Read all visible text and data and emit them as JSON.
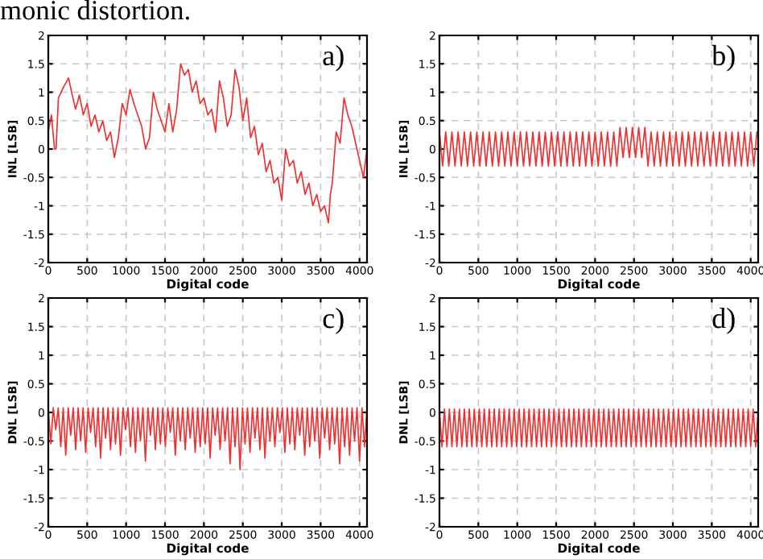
{
  "chart_data": [
    {
      "type": "line",
      "xlabel": "Digital code",
      "ylabel": "INL [LSB]",
      "annotations": [
        "a)",
        "monic distortion."
      ],
      "grid": true,
      "line_style": "solid",
      "marker": "none",
      "xlim": [
        0,
        4096
      ],
      "ylim": [
        -2,
        2
      ],
      "xticks": [
        0,
        500,
        1000,
        1500,
        2000,
        2500,
        3000,
        3500,
        4000
      ],
      "yticks": [
        -2,
        -1.5,
        -1,
        -0.5,
        0,
        0.5,
        1,
        1.5,
        2
      ],
      "x": [
        0,
        40,
        80,
        100,
        130,
        200,
        260,
        300,
        350,
        400,
        450,
        500,
        550,
        600,
        650,
        700,
        750,
        800,
        850,
        900,
        950,
        1000,
        1050,
        1100,
        1150,
        1200,
        1250,
        1300,
        1350,
        1400,
        1450,
        1500,
        1550,
        1600,
        1650,
        1700,
        1750,
        1800,
        1850,
        1900,
        1950,
        2000,
        2050,
        2100,
        2150,
        2200,
        2250,
        2300,
        2350,
        2400,
        2450,
        2500,
        2550,
        2600,
        2650,
        2700,
        2750,
        2800,
        2850,
        2900,
        2950,
        3000,
        3050,
        3100,
        3150,
        3200,
        3250,
        3300,
        3350,
        3400,
        3450,
        3500,
        3550,
        3600,
        3625,
        3650,
        3700,
        3750,
        3800,
        3850,
        3900,
        3950,
        4000,
        4050,
        4095
      ],
      "series": [
        {
          "color": "#f03030",
          "values": [
            0.3,
            0.6,
            0.0,
            0.0,
            0.9,
            1.1,
            1.25,
            1.0,
            0.7,
            0.95,
            0.6,
            0.8,
            0.4,
            0.6,
            0.3,
            0.5,
            0.15,
            0.3,
            -0.15,
            0.2,
            0.8,
            0.6,
            1.05,
            0.8,
            0.6,
            0.4,
            0.0,
            0.2,
            1.0,
            0.7,
            0.5,
            0.3,
            0.8,
            0.3,
            0.7,
            1.5,
            1.3,
            1.4,
            1.0,
            1.2,
            0.8,
            0.9,
            0.6,
            0.7,
            0.3,
            1.2,
            0.9,
            0.4,
            0.6,
            1.4,
            1.1,
            0.5,
            0.9,
            0.2,
            0.4,
            -0.1,
            0.1,
            -0.4,
            -0.2,
            -0.6,
            -0.5,
            -0.9,
            0.0,
            -0.3,
            -0.2,
            -0.6,
            -0.4,
            -0.8,
            -0.6,
            -1.0,
            -0.8,
            -1.1,
            -1.0,
            -1.3,
            -0.8,
            -0.6,
            0.3,
            0.1,
            0.9,
            0.6,
            0.4,
            0.1,
            -0.2,
            -0.5,
            0.0
          ]
        }
      ]
    },
    {
      "type": "line",
      "xlabel": "Digital code",
      "ylabel": "INL [LSB]",
      "annotations": [
        "b)"
      ],
      "grid": true,
      "line_style": "solid",
      "marker": "none",
      "xlim": [
        0,
        4096
      ],
      "ylim": [
        -2,
        2
      ],
      "xticks": [
        0,
        500,
        1000,
        1500,
        2000,
        2500,
        3000,
        3500,
        4000
      ],
      "yticks": [
        -2,
        -1.5,
        -1,
        -0.5,
        0,
        0.5,
        1,
        1.5,
        2
      ],
      "x": [
        0,
        40,
        80,
        120,
        160,
        200,
        240,
        280,
        320,
        360,
        400,
        440,
        480,
        520,
        560,
        600,
        640,
        680,
        720,
        760,
        800,
        840,
        880,
        920,
        960,
        1000,
        1040,
        1080,
        1120,
        1160,
        1200,
        1240,
        1280,
        1320,
        1360,
        1400,
        1440,
        1480,
        1520,
        1560,
        1600,
        1640,
        1680,
        1720,
        1760,
        1800,
        1840,
        1880,
        1920,
        1960,
        2000,
        2040,
        2080,
        2120,
        2160,
        2200,
        2240,
        2280,
        2320,
        2360,
        2400,
        2440,
        2480,
        2520,
        2560,
        2600,
        2640,
        2680,
        2720,
        2760,
        2800,
        2840,
        2880,
        2920,
        2960,
        3000,
        3040,
        3080,
        3120,
        3160,
        3200,
        3240,
        3280,
        3320,
        3360,
        3400,
        3440,
        3480,
        3520,
        3560,
        3600,
        3640,
        3680,
        3720,
        3760,
        3800,
        3840,
        3880,
        3920,
        3960,
        4000,
        4040,
        4080
      ],
      "series": [
        {
          "color": "#f03030",
          "values": [
            0.3,
            -0.3,
            0.3,
            -0.3,
            0.3,
            -0.3,
            0.3,
            -0.3,
            0.3,
            -0.3,
            0.3,
            -0.3,
            0.3,
            -0.3,
            0.3,
            -0.3,
            0.3,
            -0.3,
            0.3,
            -0.3,
            0.3,
            -0.3,
            0.3,
            -0.3,
            0.3,
            -0.3,
            0.3,
            -0.3,
            0.3,
            -0.3,
            0.3,
            -0.3,
            0.3,
            -0.3,
            0.3,
            -0.3,
            0.3,
            -0.3,
            0.3,
            -0.3,
            0.3,
            -0.3,
            0.3,
            -0.3,
            0.3,
            -0.3,
            0.3,
            -0.3,
            0.3,
            -0.3,
            0.3,
            -0.3,
            0.3,
            -0.3,
            0.3,
            -0.3,
            0.3,
            -0.3,
            0.38,
            -0.15,
            0.38,
            -0.15,
            0.38,
            -0.15,
            0.38,
            -0.15,
            0.38,
            -0.3,
            0.3,
            -0.3,
            0.3,
            -0.3,
            0.3,
            -0.3,
            0.3,
            -0.3,
            0.3,
            -0.3,
            0.3,
            -0.3,
            0.3,
            -0.3,
            0.3,
            -0.3,
            0.3,
            -0.3,
            0.3,
            -0.3,
            0.3,
            -0.3,
            0.3,
            -0.3,
            0.3,
            -0.3,
            0.3,
            -0.3,
            0.3,
            -0.3,
            0.3,
            -0.3,
            0.3,
            -0.3,
            0.3
          ]
        }
      ]
    },
    {
      "type": "line",
      "xlabel": "Digital code",
      "ylabel": "DNL [LSB]",
      "annotations": [
        "c)"
      ],
      "grid": true,
      "line_style": "solid",
      "marker": "none",
      "xlim": [
        0,
        4096
      ],
      "ylim": [
        -2,
        2
      ],
      "xticks": [
        0,
        500,
        1000,
        1500,
        2000,
        2500,
        3000,
        3500,
        4000
      ],
      "yticks": [
        -2,
        -1.5,
        -1,
        -0.5,
        0,
        0.5,
        1,
        1.5,
        2
      ],
      "x": [
        0,
        32,
        64,
        96,
        128,
        160,
        192,
        224,
        256,
        288,
        320,
        352,
        384,
        416,
        448,
        480,
        512,
        544,
        576,
        608,
        640,
        672,
        704,
        736,
        768,
        800,
        832,
        864,
        896,
        928,
        960,
        992,
        1024,
        1056,
        1088,
        1120,
        1152,
        1184,
        1216,
        1248,
        1280,
        1312,
        1344,
        1376,
        1408,
        1440,
        1472,
        1504,
        1536,
        1568,
        1600,
        1632,
        1664,
        1696,
        1728,
        1760,
        1792,
        1824,
        1856,
        1888,
        1920,
        1952,
        1984,
        2016,
        2048,
        2080,
        2112,
        2144,
        2176,
        2208,
        2240,
        2272,
        2304,
        2336,
        2368,
        2400,
        2432,
        2464,
        2496,
        2528,
        2560,
        2592,
        2624,
        2656,
        2688,
        2720,
        2752,
        2784,
        2816,
        2848,
        2880,
        2912,
        2944,
        2976,
        3008,
        3040,
        3072,
        3104,
        3136,
        3168,
        3200,
        3232,
        3264,
        3296,
        3328,
        3360,
        3392,
        3424,
        3456,
        3488,
        3520,
        3552,
        3584,
        3616,
        3648,
        3680,
        3712,
        3744,
        3776,
        3808,
        3840,
        3872,
        3904,
        3936,
        3968,
        4000,
        4032,
        4064,
        4096
      ],
      "series": [
        {
          "color": "#f03030",
          "values": [
            0.08,
            -0.55,
            0.08,
            -0.3,
            0.08,
            -0.6,
            0.08,
            -0.75,
            0.08,
            -0.4,
            0.08,
            -0.65,
            0.08,
            -0.5,
            0.08,
            -0.7,
            0.08,
            -0.35,
            0.08,
            -0.6,
            0.08,
            -0.8,
            0.08,
            -0.45,
            0.08,
            -0.65,
            0.08,
            -0.55,
            0.08,
            -0.75,
            0.08,
            -0.3,
            0.08,
            -0.6,
            0.08,
            -0.7,
            0.08,
            -0.5,
            0.08,
            -0.85,
            0.08,
            -0.4,
            0.08,
            -0.65,
            0.08,
            -0.55,
            0.08,
            -0.6,
            0.08,
            -0.35,
            0.08,
            -0.75,
            0.08,
            -0.5,
            0.08,
            -0.65,
            0.08,
            -0.45,
            0.08,
            -0.7,
            0.08,
            -0.6,
            0.08,
            -0.55,
            0.08,
            -0.8,
            0.08,
            -0.4,
            0.08,
            -0.65,
            0.08,
            -0.5,
            0.08,
            -0.9,
            0.08,
            -0.6,
            0.08,
            -1.0,
            0.08,
            -0.55,
            0.08,
            -0.7,
            0.08,
            -0.45,
            0.08,
            -0.65,
            0.08,
            -0.8,
            0.08,
            -0.5,
            0.08,
            -0.6,
            0.08,
            -0.35,
            0.08,
            -0.7,
            0.08,
            -0.55,
            0.08,
            -0.65,
            0.08,
            -0.4,
            0.08,
            -0.75,
            0.08,
            -0.6,
            0.08,
            -0.5,
            0.08,
            -0.8,
            0.08,
            -0.45,
            0.08,
            -0.65,
            0.08,
            -0.55,
            0.08,
            -0.9,
            0.08,
            -0.6,
            0.08,
            -0.75,
            0.08,
            -0.5,
            0.08,
            -0.85,
            0.08,
            -0.6,
            0.08
          ]
        }
      ]
    },
    {
      "type": "line",
      "xlabel": "Digital code",
      "ylabel": "DNL [LSB]",
      "annotations": [
        "d)"
      ],
      "grid": true,
      "line_style": "solid",
      "marker": "none",
      "xlim": [
        0,
        4096
      ],
      "ylim": [
        -2,
        2
      ],
      "xticks": [
        0,
        500,
        1000,
        1500,
        2000,
        2500,
        3000,
        3500,
        4000
      ],
      "yticks": [
        -2,
        -1.5,
        -1,
        -0.5,
        0,
        0.5,
        1,
        1.5,
        2
      ],
      "x": [
        0,
        32,
        64,
        96,
        128,
        160,
        192,
        224,
        256,
        288,
        320,
        352,
        384,
        416,
        448,
        480,
        512,
        544,
        576,
        608,
        640,
        672,
        704,
        736,
        768,
        800,
        832,
        864,
        896,
        928,
        960,
        992,
        1024,
        1056,
        1088,
        1120,
        1152,
        1184,
        1216,
        1248,
        1280,
        1312,
        1344,
        1376,
        1408,
        1440,
        1472,
        1504,
        1536,
        1568,
        1600,
        1632,
        1664,
        1696,
        1728,
        1760,
        1792,
        1824,
        1856,
        1888,
        1920,
        1952,
        1984,
        2016,
        2048,
        2080,
        2112,
        2144,
        2176,
        2208,
        2240,
        2272,
        2304,
        2336,
        2368,
        2400,
        2432,
        2464,
        2496,
        2528,
        2560,
        2592,
        2624,
        2656,
        2688,
        2720,
        2752,
        2784,
        2816,
        2848,
        2880,
        2912,
        2944,
        2976,
        3008,
        3040,
        3072,
        3104,
        3136,
        3168,
        3200,
        3232,
        3264,
        3296,
        3328,
        3360,
        3392,
        3424,
        3456,
        3488,
        3520,
        3552,
        3584,
        3616,
        3648,
        3680,
        3712,
        3744,
        3776,
        3808,
        3840,
        3872,
        3904,
        3936,
        3968,
        4000,
        4032,
        4064,
        4096
      ],
      "series": [
        {
          "color": "#f03030",
          "values": [
            0.06,
            -0.6,
            0.06,
            -0.6,
            0.06,
            -0.6,
            0.06,
            -0.6,
            0.06,
            -0.6,
            0.06,
            -0.6,
            0.06,
            -0.6,
            0.06,
            -0.6,
            0.06,
            -0.6,
            0.06,
            -0.6,
            0.06,
            -0.6,
            0.06,
            -0.6,
            0.06,
            -0.6,
            0.06,
            -0.6,
            0.06,
            -0.6,
            0.06,
            -0.6,
            0.06,
            -0.6,
            0.06,
            -0.6,
            0.06,
            -0.6,
            0.06,
            -0.6,
            0.06,
            -0.6,
            0.06,
            -0.6,
            0.06,
            -0.6,
            0.06,
            -0.6,
            0.06,
            -0.6,
            0.06,
            -0.6,
            0.06,
            -0.6,
            0.06,
            -0.6,
            0.06,
            -0.6,
            0.06,
            -0.6,
            0.06,
            -0.6,
            0.06,
            -0.6,
            0.06,
            -0.6,
            0.06,
            -0.6,
            0.06,
            -0.6,
            0.06,
            -0.6,
            0.06,
            -0.6,
            0.06,
            -0.6,
            0.06,
            -0.6,
            0.06,
            -0.6,
            0.06,
            -0.6,
            0.06,
            -0.6,
            0.06,
            -0.6,
            0.06,
            -0.6,
            0.06,
            -0.6,
            0.06,
            -0.6,
            0.06,
            -0.6,
            0.06,
            -0.6,
            0.06,
            -0.6,
            0.06,
            -0.6,
            0.06,
            -0.6,
            0.06,
            -0.6,
            0.06,
            -0.6,
            0.06,
            -0.6,
            0.06,
            -0.6,
            0.06,
            -0.6,
            0.06,
            -0.6,
            0.06,
            -0.6,
            0.06,
            -0.6,
            0.06,
            -0.6,
            0.06,
            -0.6,
            0.06,
            -0.6,
            0.06,
            -0.6,
            0.06,
            -0.6,
            0.06
          ]
        }
      ]
    }
  ]
}
